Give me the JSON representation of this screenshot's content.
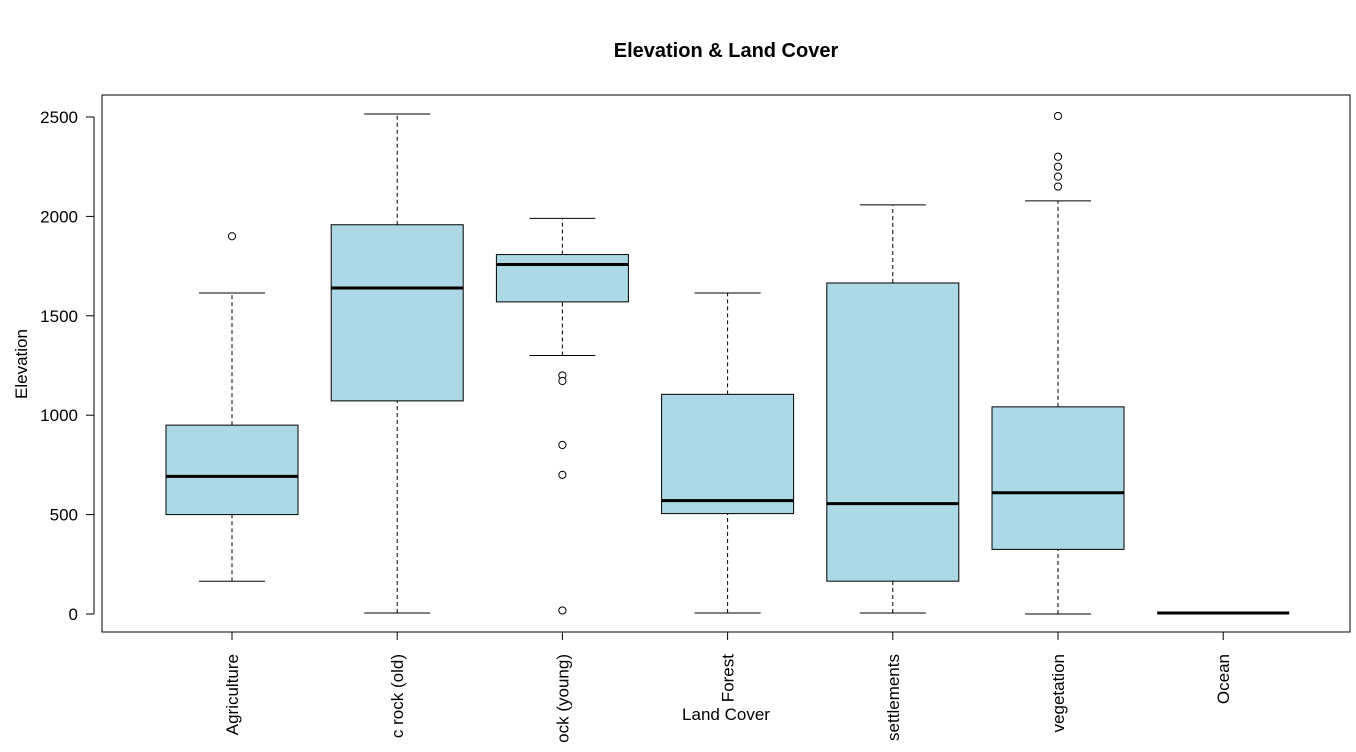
{
  "chart_data": {
    "type": "boxplot",
    "title": "Elevation & Land Cover",
    "xlabel": "Land Cover",
    "ylabel": "Elevation",
    "ylim": [
      -90,
      2500
    ],
    "yticks": [
      0,
      500,
      1000,
      1500,
      2000,
      2500
    ],
    "box_color": "#add8e6",
    "grid": false,
    "categories": [
      {
        "label": "Agriculture",
        "min": 165,
        "q1": 500,
        "median": 692,
        "q3": 950,
        "max": 1615,
        "outliers": [
          1900
        ]
      },
      {
        "label": "c rock (old)",
        "min": 5,
        "q1": 1072,
        "median": 1640,
        "q3": 1958,
        "max": 2515,
        "outliers": []
      },
      {
        "label": "ock (young)",
        "min": 1300,
        "q1": 1570,
        "median": 1758,
        "q3": 1808,
        "max": 1990,
        "outliers": [
          1200,
          1172,
          850,
          700,
          18
        ]
      },
      {
        "label": "Forest",
        "min": 5,
        "q1": 505,
        "median": 570,
        "q3": 1105,
        "max": 1615,
        "outliers": []
      },
      {
        "label": "settlements",
        "min": 5,
        "q1": 165,
        "median": 555,
        "q3": 1665,
        "max": 2058,
        "outliers": []
      },
      {
        "label": "vegetation",
        "min": 0,
        "q1": 325,
        "median": 610,
        "q3": 1042,
        "max": 2078,
        "outliers": [
          2505,
          2300,
          2250,
          2200,
          2150
        ]
      },
      {
        "label": "Ocean",
        "min": 5,
        "q1": 5,
        "median": 5,
        "q3": 5,
        "max": 5,
        "outliers": []
      }
    ]
  }
}
